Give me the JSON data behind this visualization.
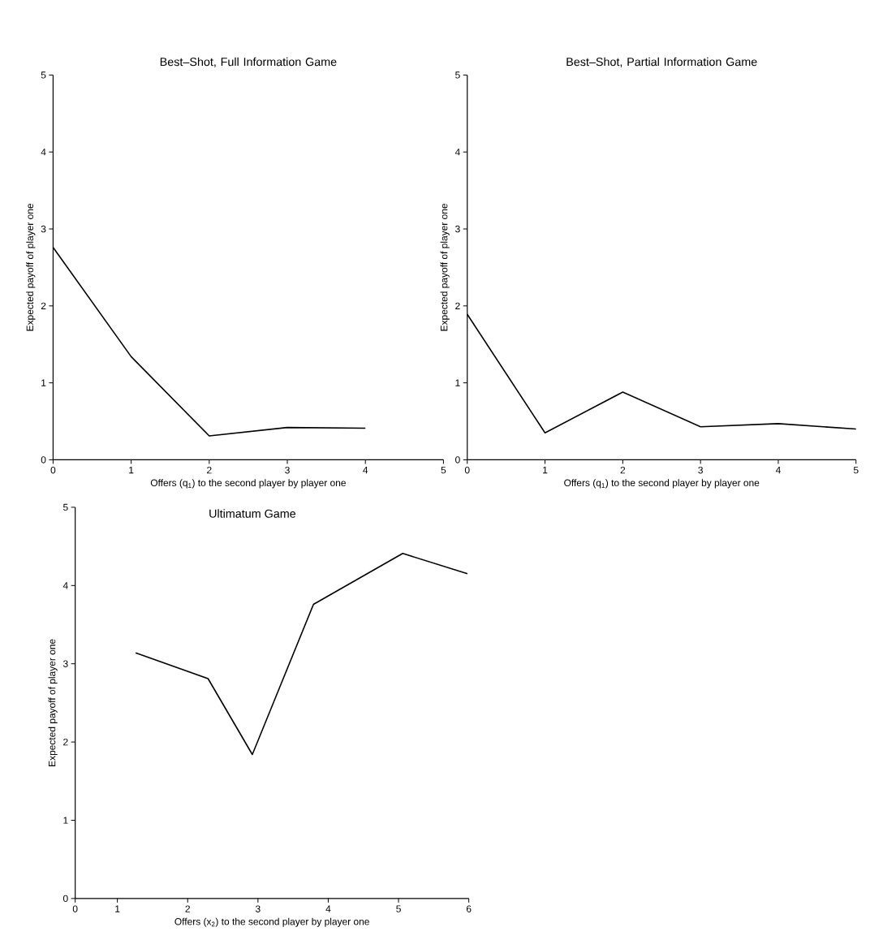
{
  "chart_data": [
    {
      "type": "line",
      "title": "Best–Shot, Full Information Game",
      "xlabel": "Offers (q$_{1}$) to the second player by player one",
      "ylabel": "Expected payoff of player one",
      "x": [
        0,
        1,
        2,
        3,
        4
      ],
      "series": [
        {
          "color": "#000000",
          "values": [
            2.76,
            1.34,
            0.31,
            0.42,
            0.41
          ]
        }
      ],
      "xlim": [
        0,
        5
      ],
      "ylim": [
        0,
        5
      ],
      "xticks": [
        0,
        1,
        2,
        3,
        4,
        5
      ],
      "yticks": [
        0,
        1,
        2,
        3,
        4,
        5
      ]
    },
    {
      "type": "line",
      "title": "Best–Shot, Partial Information Game",
      "xlabel": "Offers (q$_{1}$) to the second player by player one",
      "ylabel": "Expected payoff of player one",
      "x": [
        0,
        1,
        2,
        3,
        4,
        5
      ],
      "series": [
        {
          "color": "#000000",
          "values": [
            1.89,
            0.35,
            0.88,
            0.43,
            0.47,
            0.4
          ]
        }
      ],
      "xlim": [
        0,
        5
      ],
      "ylim": [
        0,
        5
      ],
      "xticks": [
        0,
        1,
        2,
        3,
        4,
        5
      ],
      "yticks": [
        0,
        1,
        2,
        3,
        4,
        5
      ]
    },
    {
      "type": "line",
      "title": "Ultimatum Game",
      "xlabel": "Offers (x$_{2}$) to the second player by player one",
      "ylabel": "Expected payoff of player one",
      "x": [
        1.26,
        2.29,
        2.92,
        3.79,
        5.06,
        5.98
      ],
      "series": [
        {
          "color": "#000000",
          "values": [
            3.14,
            2.81,
            1.84,
            3.76,
            4.41,
            4.15
          ]
        }
      ],
      "xlim": [
        0.4,
        6
      ],
      "ylim": [
        0,
        5
      ],
      "xticks": [
        {
          "value": 0.4,
          "label": "0"
        },
        1,
        2,
        3,
        4,
        5,
        6
      ],
      "yticks": [
        0,
        1,
        2,
        3,
        4,
        5
      ]
    }
  ]
}
